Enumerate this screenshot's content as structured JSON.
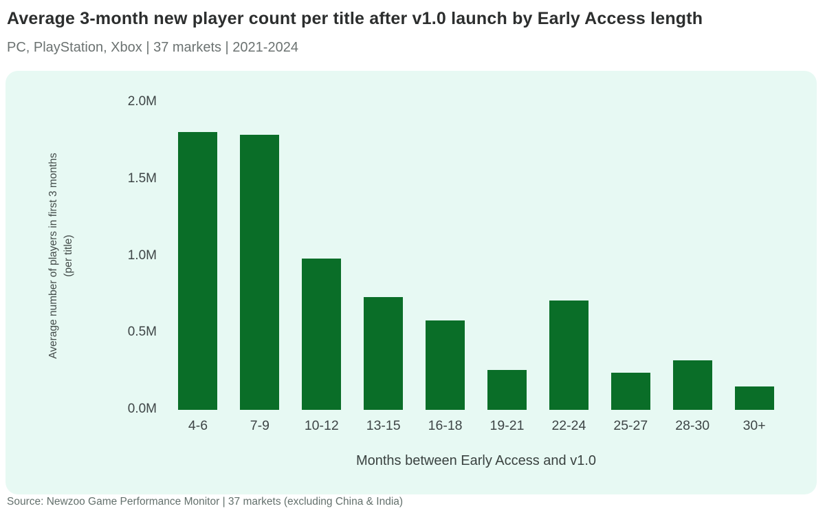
{
  "header": {
    "title": "Average 3-month new player count per title after v1.0 launch by Early Access length",
    "subtitle": "PC, PlayStation, Xbox | 37 markets | 2021-2024"
  },
  "chart_data": {
    "type": "bar",
    "title": "Average 3-month new player count per title after v1.0 launch by Early Access length",
    "subtitle": "PC, PlayStation, Xbox | 37 markets | 2021-2024",
    "categories": [
      "4-6",
      "7-9",
      "10-12",
      "13-15",
      "16-18",
      "19-21",
      "22-24",
      "25-27",
      "28-30",
      "30+"
    ],
    "values": [
      1.8,
      1.78,
      0.98,
      0.73,
      0.58,
      0.26,
      0.71,
      0.24,
      0.32,
      0.15
    ],
    "unit": "M",
    "xlabel": "Months between Early Access and v1.0",
    "ylabel_line1": "Average number of players in first 3 months",
    "ylabel_line2": "(per title)",
    "ylim": [
      0,
      2.0
    ],
    "yticks": [
      "2.0M",
      "1.5M",
      "1.0M",
      "0.5M",
      "0.0M"
    ],
    "ytick_values": [
      2.0,
      1.5,
      1.0,
      0.5,
      0.0
    ],
    "grid": false,
    "legend": "none",
    "bar_color": "#0a6e28",
    "panel_background": "#e7f9f3"
  },
  "footer": {
    "source": "Source: Newzoo Game Performance Monitor | 37 markets (excluding China & India)"
  }
}
